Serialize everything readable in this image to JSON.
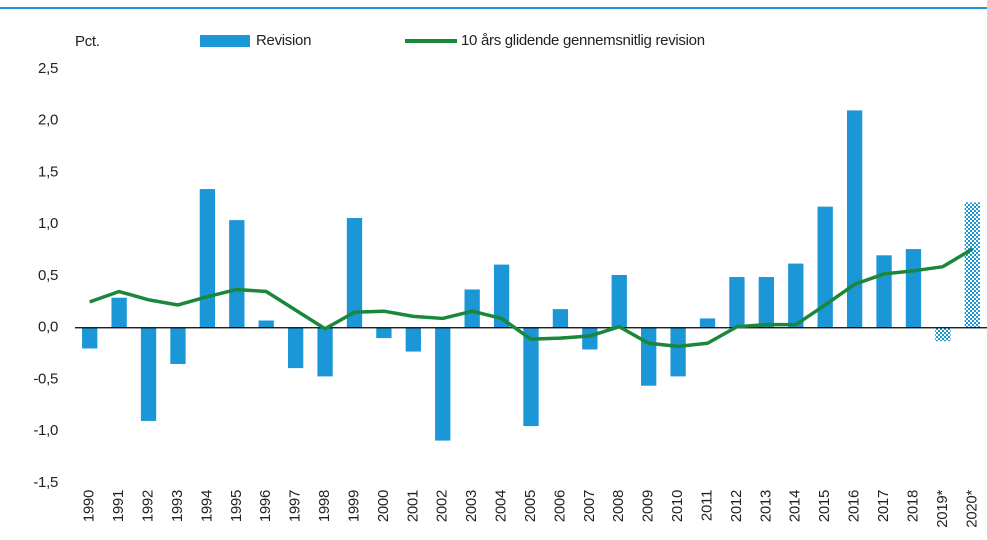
{
  "chart_data": {
    "type": "bar",
    "y_label": "Pct.",
    "categories": [
      "1990",
      "1991",
      "1992",
      "1993",
      "1994",
      "1995",
      "1996",
      "1997",
      "1998",
      "1999",
      "2000",
      "2001",
      "2002",
      "2003",
      "2004",
      "2005",
      "2006",
      "2007",
      "2008",
      "2009",
      "2010",
      "2011",
      "2012",
      "2013",
      "2014",
      "2015",
      "2016",
      "2017",
      "2018",
      "2019*",
      "2020*"
    ],
    "series": [
      {
        "name": "Revision",
        "type": "bar",
        "color": "#1b96d6",
        "values": [
          -0.2,
          0.29,
          -0.9,
          -0.35,
          1.34,
          1.04,
          0.07,
          -0.39,
          -0.47,
          1.06,
          -0.1,
          -0.23,
          -1.09,
          0.37,
          0.61,
          -0.95,
          0.18,
          -0.21,
          0.51,
          -0.56,
          -0.47,
          0.09,
          0.49,
          0.49,
          0.62,
          1.17,
          2.1,
          0.7,
          0.76,
          -0.13,
          1.21
        ]
      },
      {
        "name": "10 års glidende gennemsnitlig revision",
        "type": "line",
        "color": "#1a873b",
        "values": [
          0.25,
          0.35,
          0.27,
          0.22,
          0.3,
          0.37,
          0.35,
          0.17,
          -0.01,
          0.15,
          0.16,
          0.11,
          0.09,
          0.16,
          0.09,
          -0.11,
          -0.1,
          -0.08,
          0.01,
          -0.15,
          -0.18,
          -0.15,
          0.01,
          0.03,
          0.03,
          0.22,
          0.42,
          0.52,
          0.55,
          0.59,
          0.76
        ]
      }
    ],
    "ylim": [
      -1.5,
      2.5
    ],
    "yticks": [
      {
        "value": 2.5,
        "label": "2,5"
      },
      {
        "value": 2.0,
        "label": "2,0"
      },
      {
        "value": 1.5,
        "label": "1,5"
      },
      {
        "value": 1.0,
        "label": "1,0"
      },
      {
        "value": 0.5,
        "label": "0,5"
      },
      {
        "value": 0.0,
        "label": "0,0"
      },
      {
        "value": -0.5,
        "label": "-0,5"
      },
      {
        "value": -1.0,
        "label": "-1,0"
      },
      {
        "value": -1.5,
        "label": "-1,5"
      }
    ],
    "grid": false
  }
}
